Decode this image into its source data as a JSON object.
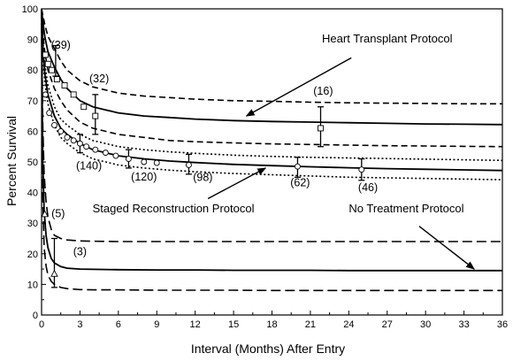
{
  "chart_data": {
    "type": "line",
    "title": "",
    "xlabel": "Interval (Months) After Entry",
    "ylabel": "Percent Survival",
    "xlim": [
      0,
      36
    ],
    "ylim": [
      0,
      100
    ],
    "x_ticks": [
      0,
      3,
      6,
      9,
      12,
      15,
      18,
      21,
      24,
      27,
      30,
      33,
      36
    ],
    "y_ticks": [
      0,
      10,
      20,
      30,
      40,
      50,
      60,
      70,
      80,
      90,
      100
    ],
    "grid": false,
    "legend": "none",
    "series": [
      {
        "key": "heart",
        "name": "Heart Transplant Protocol",
        "marker": "square",
        "curve": {
          "x": [
            0,
            0.1,
            0.25,
            0.5,
            1,
            1.5,
            2,
            3,
            4,
            5,
            6,
            8,
            10,
            12,
            15,
            18,
            21,
            24,
            27,
            30,
            33,
            36
          ],
          "estimate": [
            100,
            96,
            91,
            86,
            81,
            77,
            74,
            70,
            68,
            67,
            66,
            65,
            64.5,
            64,
            63.5,
            63.2,
            63,
            62.8,
            62.6,
            62.4,
            62.3,
            62.2
          ],
          "upper": [
            100,
            98,
            95,
            91,
            87,
            83,
            80,
            76.5,
            74.5,
            73.5,
            72.5,
            71.5,
            71,
            70.5,
            70,
            69.8,
            69.5,
            69.3,
            69.2,
            69.1,
            69,
            69
          ],
          "lower": [
            100,
            92,
            86,
            80,
            74,
            70,
            67,
            63,
            61,
            60,
            59,
            58,
            57,
            56.6,
            56.2,
            55.9,
            55.7,
            55.5,
            55.3,
            55.2,
            55.1,
            55
          ]
        },
        "points": [
          [
            0.3,
            85
          ],
          [
            0.5,
            82
          ],
          [
            0.8,
            80
          ],
          [
            1.2,
            77
          ],
          [
            1.8,
            75
          ],
          [
            2.5,
            72
          ],
          [
            3.3,
            68
          ],
          [
            4.2,
            65
          ],
          [
            21.8,
            61
          ]
        ],
        "error_bars": [
          [
            1.1,
            78,
            88
          ],
          [
            4.2,
            59,
            72
          ],
          [
            21.8,
            55,
            68
          ]
        ],
        "counts": [
          {
            "x": 1.5,
            "y": 87,
            "label": "(39)"
          },
          {
            "x": 4.5,
            "y": 76,
            "label": "(32)"
          },
          {
            "x": 22,
            "y": 72,
            "label": "(16)"
          }
        ]
      },
      {
        "key": "staged",
        "name": "Staged Reconstruction Protocol",
        "marker": "circle",
        "curve": {
          "x": [
            0,
            0.1,
            0.25,
            0.5,
            1,
            1.5,
            2,
            3,
            4,
            5,
            6,
            8,
            10,
            12,
            15,
            18,
            21,
            24,
            27,
            30,
            33,
            36
          ],
          "estimate": [
            100,
            88,
            79,
            72,
            65,
            61,
            59,
            56,
            54,
            53,
            52,
            51,
            50.3,
            49.8,
            49.2,
            48.8,
            48.4,
            48.1,
            47.8,
            47.6,
            47.4,
            47.2
          ],
          "upper": [
            100,
            90,
            82,
            75,
            68,
            64,
            62,
            59,
            57,
            56,
            55,
            54,
            53.3,
            52.8,
            52.2,
            51.8,
            51.5,
            51.3,
            51.1,
            50.9,
            50.7,
            50.5
          ],
          "lower": [
            100,
            86,
            76,
            69,
            62,
            58,
            56,
            53,
            51,
            50,
            49,
            48,
            47.3,
            46.8,
            46.2,
            45.8,
            45.4,
            45,
            44.8,
            44.6,
            44.4,
            44.2
          ]
        },
        "points": [
          [
            0.3,
            72
          ],
          [
            0.6,
            66
          ],
          [
            1,
            62
          ],
          [
            1.5,
            60
          ],
          [
            2,
            58
          ],
          [
            2.5,
            57
          ],
          [
            3,
            56
          ],
          [
            3.5,
            55
          ],
          [
            4.2,
            54
          ],
          [
            5,
            53
          ],
          [
            5.8,
            52
          ],
          [
            6.8,
            51
          ],
          [
            8,
            50
          ],
          [
            9,
            49.7
          ],
          [
            11.5,
            49
          ],
          [
            20,
            48.5
          ],
          [
            25,
            47.5
          ]
        ],
        "error_bars": [
          [
            3,
            53,
            59
          ],
          [
            6.8,
            48,
            54
          ],
          [
            11.5,
            46,
            52.5
          ],
          [
            20,
            45,
            51.5
          ],
          [
            25,
            44,
            51
          ]
        ],
        "counts": [
          {
            "x": 3.7,
            "y": 47.5,
            "label": "(140)"
          },
          {
            "x": 8,
            "y": 44,
            "label": "(120)"
          },
          {
            "x": 12.6,
            "y": 43.8,
            "label": "(98)"
          },
          {
            "x": 20.2,
            "y": 42,
            "label": "(62)"
          },
          {
            "x": 25.5,
            "y": 40.5,
            "label": "(46)"
          }
        ]
      },
      {
        "key": "none",
        "name": "No Treatment Protocol",
        "marker": "triangle",
        "curve": {
          "x": [
            0,
            0.05,
            0.1,
            0.2,
            0.35,
            0.5,
            0.75,
            1,
            1.5,
            2,
            3,
            4,
            6,
            9,
            12,
            15,
            18,
            21,
            24,
            27,
            30,
            33,
            36
          ],
          "estimate": [
            100,
            70,
            50,
            34,
            26,
            22,
            18.5,
            17,
            15.8,
            15.3,
            15,
            14.9,
            14.8,
            14.7,
            14.7,
            14.6,
            14.6,
            14.6,
            14.5,
            14.5,
            14.5,
            14.5,
            14.5
          ],
          "upper": [
            100,
            80,
            62,
            46,
            37,
            32,
            28,
            26,
            25,
            24.5,
            24.2,
            24.1,
            24,
            24,
            24,
            24,
            24,
            24,
            24,
            24,
            24,
            24,
            24
          ],
          "lower": [
            100,
            58,
            38,
            22,
            16,
            13,
            11,
            10,
            9,
            8.6,
            8.3,
            8.2,
            8.2,
            8.1,
            8.1,
            8.1,
            8,
            8,
            8,
            8,
            8,
            8,
            8
          ]
        },
        "points": [
          [
            0.25,
            33
          ],
          [
            1,
            13.5
          ]
        ],
        "error_bars": [
          [
            1,
            9,
            25
          ]
        ],
        "counts": [
          {
            "x": 1.3,
            "y": 32,
            "label": "(5)"
          },
          {
            "x": 3,
            "y": 19.5,
            "label": "(3)"
          }
        ]
      }
    ],
    "annotations": [
      {
        "key": "heart",
        "text": "Heart Transplant Protocol",
        "text_x": 27,
        "text_y": 89,
        "arrow_from": [
          24.2,
          84
        ],
        "arrow_to": [
          16,
          65
        ]
      },
      {
        "key": "staged",
        "text": "Staged Reconstruction Protocol",
        "text_x": 10.3,
        "text_y": 33.5,
        "arrow_from": [
          13,
          38
        ],
        "arrow_to": [
          17.5,
          48
        ]
      },
      {
        "key": "none",
        "text": "No Treatment Protocol",
        "text_x": 28.5,
        "text_y": 33.5,
        "arrow_from": [
          29.5,
          29
        ],
        "arrow_to": [
          33.8,
          15
        ]
      }
    ]
  }
}
